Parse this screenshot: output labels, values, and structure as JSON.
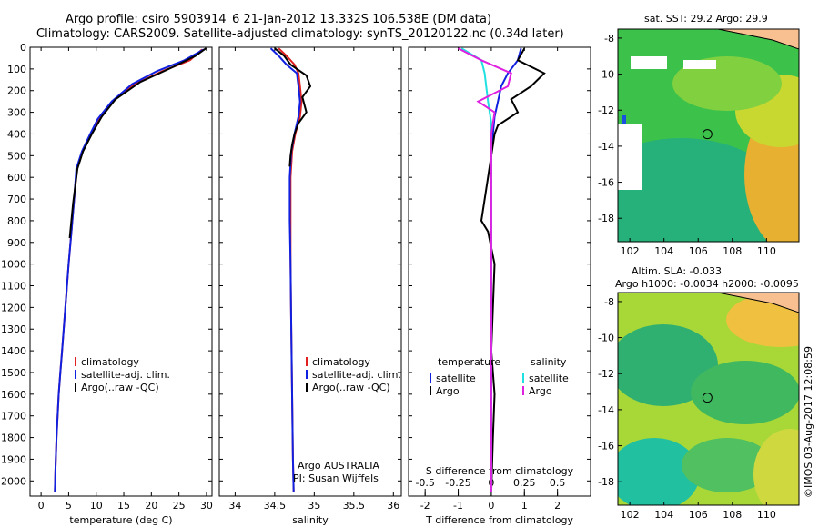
{
  "header": {
    "line1": "Argo profile: csiro 5903914_6 21-Jan-2012 13.332S 106.538E (DM data)",
    "line2": "Climatology: CARS2009. Satellite-adjusted climatology: synTS_20120122.nc (0.34d later)"
  },
  "maps": {
    "sst_title": "sat. SST: 29.2 Argo: 29.9",
    "sla_title1": "Altim. SLA: -0.033",
    "sla_title2": "Argo h1000: -0.0034 h2000: -0.0095",
    "lat_ticks": [
      "-8",
      "-10",
      "-12",
      "-14",
      "-16",
      "-18"
    ],
    "lon_ticks": [
      "102",
      "104",
      "106",
      "108",
      "110"
    ],
    "argo_position": {
      "lon": 106.538,
      "lat": -13.332
    }
  },
  "footer_stamp": "©IMOS 03-Aug-2017 12:08:59",
  "panel2_text": {
    "line1": "Argo AUSTRALIA",
    "line2": "PI: Susan Wijffels"
  },
  "colors": {
    "climatology": "#e02020",
    "satellite": "#1020e0",
    "argo": "#000000",
    "sal_satellite": "#20e0e0",
    "sal_argo": "#e020e0"
  },
  "chart_data": [
    {
      "type": "line",
      "xlabel": "temperature (deg C)",
      "ylabel": "",
      "xlim": [
        -2,
        31
      ],
      "ylim": [
        2070,
        0
      ],
      "xticks": [
        "0",
        "5",
        "10",
        "15",
        "20",
        "25",
        "30"
      ],
      "yticks": [
        "0",
        "100",
        "200",
        "300",
        "400",
        "500",
        "600",
        "700",
        "800",
        "900",
        "1000",
        "1100",
        "1200",
        "1300",
        "1400",
        "1500",
        "1600",
        "1700",
        "1800",
        "1900",
        "2000"
      ],
      "legend": [
        "climatology",
        "satellite-adj. clim.",
        "Argo(..raw -QC)"
      ],
      "series": [
        {
          "name": "climatology",
          "x": [
            29.2,
            27,
            22,
            17,
            13,
            10.5,
            9,
            7.5,
            6.5,
            6,
            5.5,
            5,
            4.7,
            4.4,
            4.1,
            3.8,
            3.5,
            3.2,
            3,
            2.8,
            2.6,
            2.5
          ],
          "y": [
            10,
            60,
            110,
            170,
            250,
            330,
            400,
            480,
            560,
            700,
            850,
            1000,
            1100,
            1200,
            1300,
            1400,
            1500,
            1600,
            1700,
            1800,
            1950,
            2050
          ]
        },
        {
          "name": "satellite-adj. clim.",
          "x": [
            29.5,
            26,
            21,
            16.5,
            12.8,
            10.3,
            8.9,
            7.4,
            6.4,
            6,
            5.5,
            5,
            4.7,
            4.4,
            4.1,
            3.8,
            3.5,
            3.2,
            3,
            2.8,
            2.6,
            2.5
          ],
          "y": [
            10,
            60,
            110,
            170,
            250,
            330,
            400,
            480,
            560,
            700,
            850,
            1000,
            1100,
            1200,
            1300,
            1400,
            1500,
            1600,
            1700,
            1800,
            1950,
            2050
          ]
        },
        {
          "name": "Argo(..raw -QC)",
          "x": [
            29.9,
            28,
            24,
            18,
            13.5,
            11,
            9.2,
            7.6,
            6.6,
            5.8,
            5.2
          ],
          "y": [
            5,
            40,
            90,
            160,
            240,
            320,
            400,
            480,
            560,
            720,
            880
          ]
        }
      ]
    },
    {
      "type": "line",
      "xlabel": "salinity",
      "ylabel": "",
      "xlim": [
        33.8,
        36.1
      ],
      "ylim": [
        2070,
        0
      ],
      "xticks": [
        "34",
        "34.5",
        "35",
        "35.5",
        "36"
      ],
      "legend": [
        "climatology",
        "satellite-adj. clim.",
        "Argo(..raw -QC)"
      ],
      "series": [
        {
          "name": "climatology",
          "x": [
            34.55,
            34.65,
            34.75,
            34.8,
            34.82,
            34.84,
            34.82,
            34.76,
            34.72,
            34.7,
            34.7,
            34.7,
            34.71,
            34.72,
            34.73,
            34.74
          ],
          "y": [
            5,
            40,
            80,
            120,
            180,
            250,
            320,
            400,
            480,
            600,
            800,
            1000,
            1300,
            1600,
            1900,
            2050
          ]
        },
        {
          "name": "satellite-adj. clim.",
          "x": [
            34.45,
            34.55,
            34.65,
            34.78,
            34.8,
            34.82,
            34.8,
            34.75,
            34.71,
            34.69,
            34.69,
            34.7,
            34.71,
            34.72,
            34.73,
            34.74
          ],
          "y": [
            5,
            40,
            80,
            120,
            180,
            250,
            320,
            400,
            480,
            600,
            800,
            1000,
            1300,
            1600,
            1900,
            2050
          ]
        },
        {
          "name": "Argo(..raw -QC)",
          "x": [
            34.5,
            34.62,
            34.7,
            34.9,
            34.95,
            34.85,
            34.9,
            34.8,
            34.75,
            34.72,
            34.7,
            34.69
          ],
          "y": [
            5,
            40,
            80,
            130,
            180,
            230,
            300,
            350,
            400,
            450,
            500,
            550
          ]
        }
      ]
    },
    {
      "type": "line",
      "xlabel": "T difference from climatology",
      "xlabel2": "S difference from climatology",
      "xlim": [
        -2.5,
        3
      ],
      "ylim": [
        2070,
        0
      ],
      "xticks": [
        "-2",
        "-1",
        "0",
        "1",
        "2"
      ],
      "xticks2": [
        "-0.5",
        "-0.25",
        "0",
        "0.25",
        "0.5"
      ],
      "legend_titles": [
        "temperature",
        "salinity"
      ],
      "legend": [
        "satellite",
        "Argo",
        "satellite",
        "Argo"
      ],
      "series": [
        {
          "name": "satellite",
          "x": [
            0.9,
            0.8,
            0.5,
            0.3,
            0.2,
            0.1,
            0.05,
            0,
            0,
            0
          ],
          "y": [
            5,
            60,
            120,
            180,
            250,
            320,
            400,
            500,
            1000,
            2050
          ]
        },
        {
          "name": "Argo",
          "x": [
            1.0,
            0.8,
            1.6,
            1.2,
            0.6,
            0.8,
            0.2,
            0.1,
            -0.1,
            -0.3,
            -0.1,
            0.1,
            0.05,
            0,
            0.1,
            0.05,
            0
          ],
          "y": [
            5,
            60,
            120,
            180,
            240,
            300,
            360,
            400,
            600,
            800,
            850,
            1000,
            1200,
            1400,
            1600,
            1800,
            2050
          ]
        },
        {
          "name": "satellite",
          "x": [
            -0.9,
            -0.3,
            -0.2,
            -0.1,
            0,
            0,
            0
          ],
          "y": [
            5,
            60,
            120,
            250,
            350,
            600,
            2050
          ]
        },
        {
          "name": "Argo",
          "x": [
            -1,
            -0.3,
            0.6,
            0.5,
            -0.4,
            0.1,
            0,
            0,
            0
          ],
          "y": [
            5,
            60,
            120,
            180,
            250,
            300,
            400,
            800,
            2050
          ]
        }
      ]
    }
  ]
}
